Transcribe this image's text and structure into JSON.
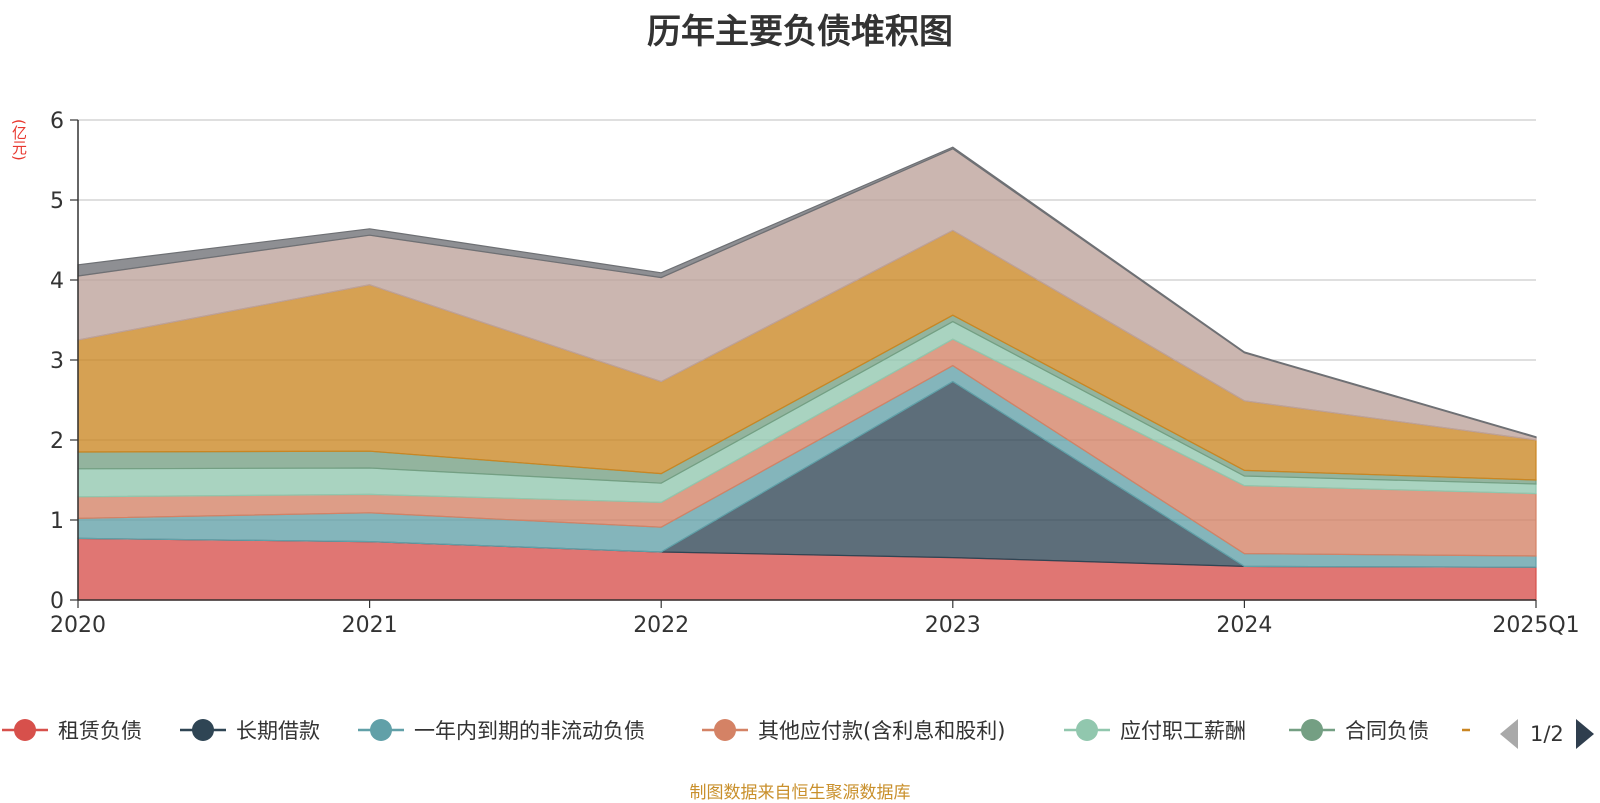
{
  "chart_data": {
    "type": "area",
    "title": "历年主要负债堆积图",
    "ylabel": "(亿元)",
    "xlabel": "",
    "x": [
      "2020",
      "2021",
      "2022",
      "2023",
      "2024",
      "2025Q1"
    ],
    "ylim": [
      0,
      6
    ],
    "yticks": [
      "0",
      "1",
      "2",
      "3",
      "4",
      "5",
      "6"
    ],
    "grid": true,
    "stacked": true,
    "legend_position": "bottom",
    "series": [
      {
        "name": "租赁负债",
        "color": "#d7504b",
        "values": [
          0.77,
          0.73,
          0.6,
          0.53,
          0.42,
          0.41
        ]
      },
      {
        "name": "长期借款",
        "color": "#2f4554",
        "values": [
          0.0,
          0.0,
          0.0,
          2.2,
          0.0,
          0.0
        ]
      },
      {
        "name": "一年内到期的非流动负债",
        "color": "#61a0a8",
        "values": [
          0.25,
          0.36,
          0.31,
          0.2,
          0.16,
          0.14
        ]
      },
      {
        "name": "其他应付款(含利息和股利)",
        "color": "#d48265",
        "values": [
          0.27,
          0.23,
          0.31,
          0.33,
          0.85,
          0.78
        ]
      },
      {
        "name": "应付职工薪酬",
        "color": "#91c7ae",
        "values": [
          0.35,
          0.33,
          0.24,
          0.22,
          0.12,
          0.12
        ]
      },
      {
        "name": "合同负债",
        "color": "#749f83",
        "values": [
          0.21,
          0.21,
          0.12,
          0.08,
          0.07,
          0.05
        ]
      },
      {
        "name": "",
        "color": "#ca8622",
        "values": [
          1.4,
          2.08,
          1.15,
          1.06,
          0.87,
          0.5
        ]
      },
      {
        "name": "",
        "color": "#bda29a",
        "values": [
          0.8,
          0.62,
          1.3,
          1.02,
          0.6,
          0.03
        ]
      },
      {
        "name": "",
        "color": "#6e7074",
        "values": [
          0.14,
          0.08,
          0.06,
          0.02,
          0.01,
          0.01
        ]
      }
    ]
  },
  "legend": {
    "page_indicator": "1/2",
    "visible_item_count": 7
  },
  "footer": {
    "source": "制图数据来自恒生聚源数据库"
  }
}
